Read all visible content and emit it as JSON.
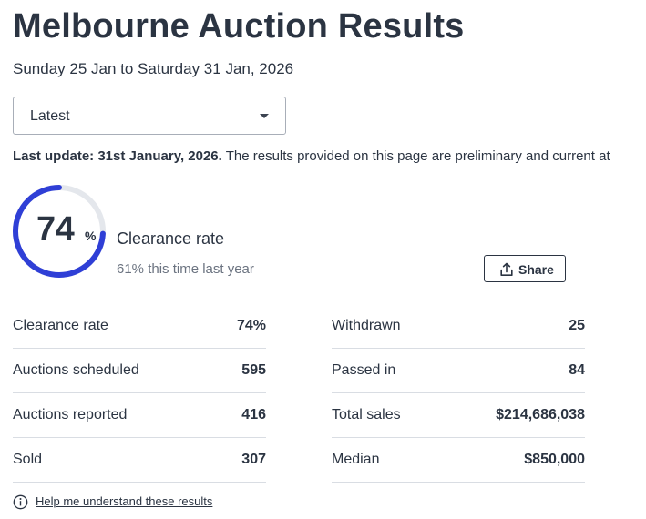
{
  "header": {
    "title": "Melbourne Auction Results",
    "date_range": "Sunday 25 Jan to Saturday 31 Jan, 2026"
  },
  "period_select": {
    "value": "Latest",
    "icon": "chevron-down-icon"
  },
  "update_notice": {
    "bold": "Last update: 31st January, 2026.",
    "text": " The results provided on this page are preliminary and current at"
  },
  "clearance": {
    "value": "74",
    "unit": "%",
    "fraction": 0.74,
    "label": "Clearance rate",
    "comparison": "61% this time last year",
    "ring_color": "#2f3fd6",
    "track_color": "#e4e7ec"
  },
  "share_button": {
    "label": "Share",
    "icon": "share-icon"
  },
  "stats_left": [
    {
      "label": "Clearance rate",
      "value": "74%"
    },
    {
      "label": "Auctions scheduled",
      "value": "595"
    },
    {
      "label": "Auctions reported",
      "value": "416"
    },
    {
      "label": "Sold",
      "value": "307"
    }
  ],
  "stats_right": [
    {
      "label": "Withdrawn",
      "value": "25"
    },
    {
      "label": "Passed in",
      "value": "84"
    },
    {
      "label": "Total sales",
      "value": "$214,686,038"
    },
    {
      "label": "Median",
      "value": "$850,000"
    }
  ],
  "help_link": {
    "label": "Help me understand these results",
    "icon": "info-icon"
  }
}
